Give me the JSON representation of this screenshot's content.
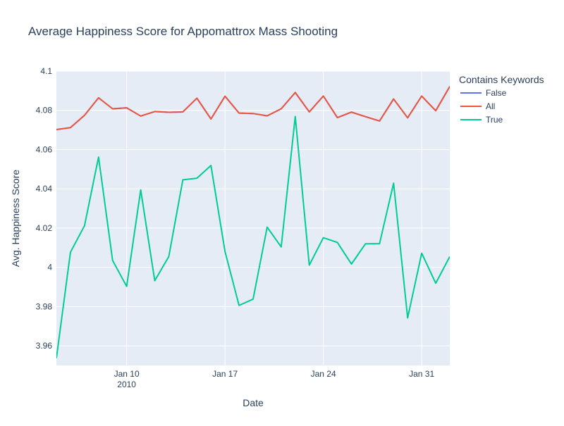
{
  "chart_data": {
    "type": "line",
    "title": "Average Happiness Score for Appomattrox Mass Shooting",
    "xlabel": "Date",
    "ylabel": "Avg. Happiness Score",
    "x_range": [
      "2010-01-05",
      "2010-02-02"
    ],
    "ylim": [
      3.95,
      4.1
    ],
    "x_ticks": [
      {
        "date": "2010-01-10",
        "label": "Jan 10",
        "sublabel": "2010"
      },
      {
        "date": "2010-01-17",
        "label": "Jan 17",
        "sublabel": ""
      },
      {
        "date": "2010-01-24",
        "label": "Jan 24",
        "sublabel": ""
      },
      {
        "date": "2010-01-31",
        "label": "Jan 31",
        "sublabel": ""
      }
    ],
    "y_ticks": [
      {
        "value": 3.96,
        "label": "3.96"
      },
      {
        "value": 3.98,
        "label": "3.98"
      },
      {
        "value": 4.0,
        "label": "4"
      },
      {
        "value": 4.02,
        "label": "4.02"
      },
      {
        "value": 4.04,
        "label": "4.04"
      },
      {
        "value": 4.06,
        "label": "4.06"
      },
      {
        "value": 4.08,
        "label": "4.08"
      },
      {
        "value": 4.1,
        "label": "4.1"
      }
    ],
    "grid": true,
    "legend": {
      "title": "Contains Keywords",
      "placement": "right"
    },
    "x": [
      "2010-01-05",
      "2010-01-06",
      "2010-01-07",
      "2010-01-08",
      "2010-01-09",
      "2010-01-10",
      "2010-01-11",
      "2010-01-12",
      "2010-01-13",
      "2010-01-14",
      "2010-01-15",
      "2010-01-16",
      "2010-01-17",
      "2010-01-18",
      "2010-01-19",
      "2010-01-20",
      "2010-01-21",
      "2010-01-22",
      "2010-01-23",
      "2010-01-24",
      "2010-01-25",
      "2010-01-26",
      "2010-01-27",
      "2010-01-28",
      "2010-01-29",
      "2010-01-30",
      "2010-01-31",
      "2010-02-01",
      "2010-02-02"
    ],
    "series": [
      {
        "name": "False",
        "color": "#636efa",
        "values": [
          4.0702,
          4.0712,
          4.0775,
          4.0864,
          4.0808,
          4.0813,
          4.0771,
          4.0794,
          4.079,
          4.0792,
          4.0862,
          4.0756,
          4.0872,
          4.0786,
          4.0784,
          4.0772,
          4.0808,
          4.0891,
          4.0792,
          4.0873,
          4.0763,
          4.0791,
          4.0768,
          4.0746,
          4.0858,
          4.0762,
          4.0873,
          4.0798,
          4.0922
        ]
      },
      {
        "name": "All",
        "color": "#ef553b",
        "values": [
          4.0702,
          4.0712,
          4.0775,
          4.0864,
          4.0808,
          4.0813,
          4.0771,
          4.0794,
          4.079,
          4.0792,
          4.0862,
          4.0756,
          4.0872,
          4.0786,
          4.0784,
          4.0772,
          4.0808,
          4.0891,
          4.0792,
          4.0873,
          4.0763,
          4.0791,
          4.0768,
          4.0746,
          4.0858,
          4.0762,
          4.0873,
          4.0798,
          4.0922
        ]
      },
      {
        "name": "True",
        "color": "#00cc96",
        "values": [
          3.9537,
          4.0077,
          4.0212,
          4.0562,
          4.0035,
          3.9903,
          4.0395,
          3.9932,
          4.0055,
          4.0446,
          4.0454,
          4.0519,
          4.0081,
          3.9806,
          3.9838,
          4.0205,
          4.0104,
          4.0769,
          4.0011,
          4.0151,
          4.0127,
          4.0017,
          4.012,
          4.0121,
          4.0429,
          3.9742,
          4.0072,
          3.9919,
          4.0055
        ]
      }
    ]
  },
  "colors": {
    "plot_bg": "#e5ecf6",
    "grid": "#ffffff",
    "text": "#2a3f5f",
    "tick_text": "#2a3f5f"
  }
}
